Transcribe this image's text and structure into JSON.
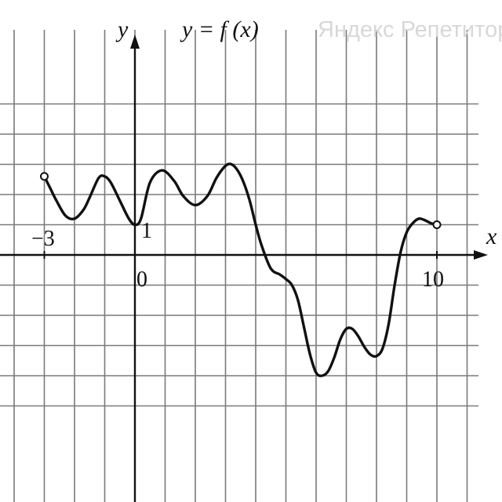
{
  "watermark": "Яндекс Репетитор",
  "chart_data": {
    "type": "line",
    "title": "y = f (x)",
    "xlabel": "x",
    "ylabel": "y",
    "xlim": [
      -3,
      10
    ],
    "ylim": [
      -4,
      4
    ],
    "grid": true,
    "tick_labels": {
      "x_start": "−3",
      "origin": "0",
      "x_end": "10",
      "y_unit": "1"
    },
    "series": [
      {
        "x": [
          -3,
          -2.8,
          -2.6,
          -2.3,
          -2,
          -1.7,
          -1.5,
          -1.2,
          -1,
          -0.8,
          -0.5,
          -0.2,
          0,
          0.2,
          0.5,
          0.9,
          1.3,
          1.6,
          2,
          2.4,
          2.7,
          3,
          3.2,
          3.4,
          3.6,
          3.8,
          4,
          4.2,
          4.5,
          4.8,
          5,
          5.2,
          5.4,
          5.6,
          5.8,
          6,
          6.2,
          6.4,
          6.6,
          6.8,
          7,
          7.2,
          7.4,
          7.6,
          7.8,
          8,
          8.2,
          8.4,
          8.6,
          8.8,
          9,
          9.2,
          9.4,
          9.6,
          9.8,
          10
        ],
        "y": [
          2.6,
          2.2,
          1.8,
          1.3,
          1.2,
          1.5,
          1.9,
          2.55,
          2.6,
          2.4,
          1.8,
          1.2,
          1.0,
          1.2,
          2.4,
          2.8,
          2.45,
          1.95,
          1.65,
          1.95,
          2.55,
          2.95,
          3.0,
          2.8,
          2.4,
          1.8,
          1.0,
          0.3,
          -0.45,
          -0.65,
          -0.8,
          -1.0,
          -1.5,
          -2.4,
          -3.3,
          -3.9,
          -4.0,
          -3.85,
          -3.4,
          -2.8,
          -2.45,
          -2.45,
          -2.7,
          -3.05,
          -3.3,
          -3.35,
          -3.1,
          -2.3,
          -1.0,
          0.1,
          0.75,
          1.05,
          1.2,
          1.15,
          1.05,
          1.0
        ]
      }
    ],
    "open_endpoints": [
      {
        "x": -3,
        "y": 2.6
      },
      {
        "x": 10,
        "y": 1.0
      }
    ]
  }
}
